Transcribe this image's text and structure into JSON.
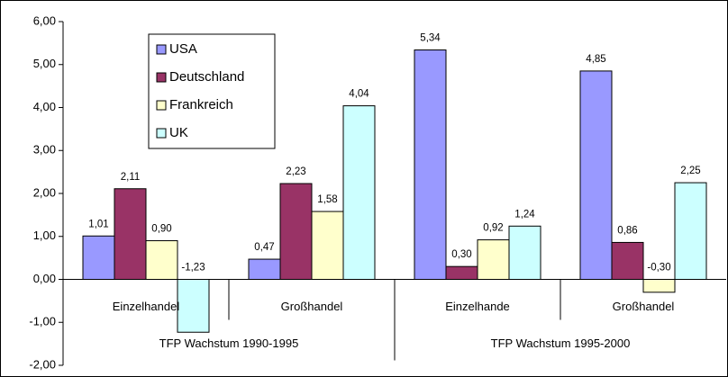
{
  "chart_data": {
    "type": "bar",
    "categories": [
      "Einzelhandel",
      "Großhandel",
      "Einzelhande",
      "Großhandel"
    ],
    "groups": [
      "TFP Wachstum 1990-1995",
      "TFP Wachstum 1995-2000"
    ],
    "series": [
      {
        "name": "USA",
        "color": "#9999ff",
        "values": [
          1.01,
          0.47,
          5.34,
          4.85
        ],
        "value_labels": [
          "1,01",
          "0,47",
          "5,34",
          "4,85"
        ]
      },
      {
        "name": "Deutschland",
        "color": "#993366",
        "values": [
          2.11,
          2.23,
          0.3,
          0.86
        ],
        "value_labels": [
          "2,11",
          "2,23",
          "0,30",
          "0,86"
        ]
      },
      {
        "name": "Frankreich",
        "color": "#ffffcc",
        "values": [
          0.9,
          1.58,
          0.92,
          -0.3
        ],
        "value_labels": [
          "0,90",
          "1,58",
          "0,92",
          "-0,30"
        ]
      },
      {
        "name": "UK",
        "color": "#ccffff",
        "values": [
          -1.23,
          4.04,
          1.24,
          2.25
        ],
        "value_labels": [
          "-1,23",
          "4,04",
          "1,24",
          "2,25"
        ]
      }
    ],
    "ylim": [
      -2,
      6
    ],
    "yticks": [
      {
        "value": -2,
        "label": "-2,00"
      },
      {
        "value": -1,
        "label": "-1,00"
      },
      {
        "value": 0,
        "label": "0,00"
      },
      {
        "value": 1,
        "label": "1,00"
      },
      {
        "value": 2,
        "label": "2,00"
      },
      {
        "value": 3,
        "label": "3,00"
      },
      {
        "value": 4,
        "label": "4,00"
      },
      {
        "value": 5,
        "label": "5,00"
      },
      {
        "value": 6,
        "label": "6,00"
      }
    ],
    "legend": "top-left"
  }
}
